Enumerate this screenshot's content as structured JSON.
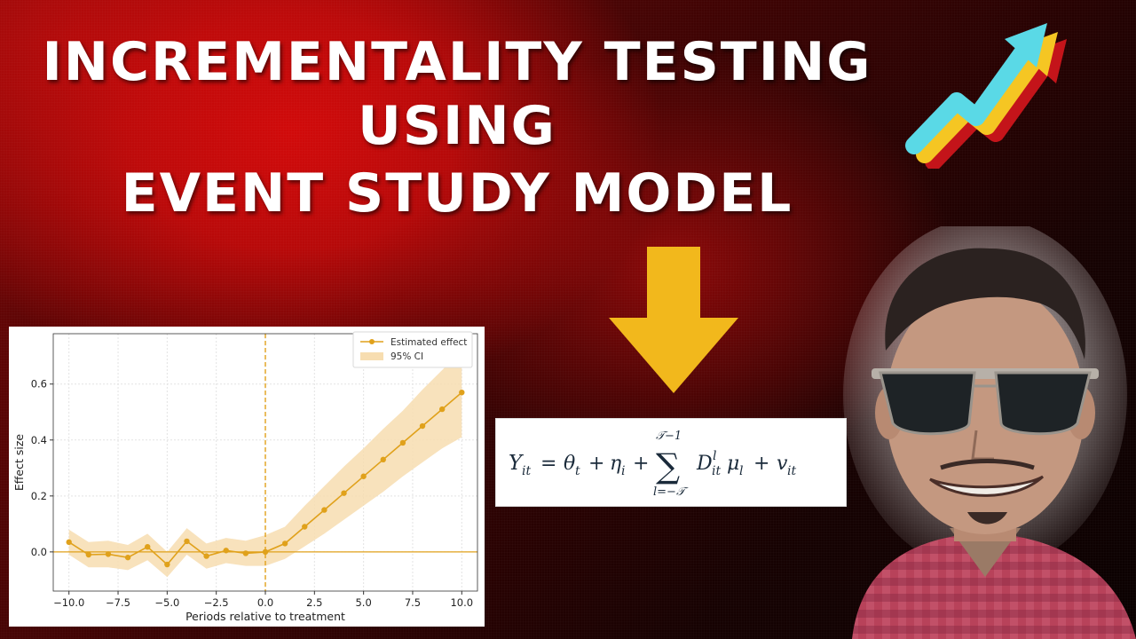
{
  "title": {
    "line1": "INCREMENTALITY TESTING",
    "line2": "USING",
    "line3": "EVENT STUDY MODEL"
  },
  "colors": {
    "background": "#8b0808",
    "chart_accent": "#e0a11b",
    "ci_fill": "#f7ddb0",
    "arrow_yellow": "#f2b81c",
    "trend_cyan": "#5ad9e6",
    "trend_yellow": "#f5c623",
    "trend_red": "#c4141a"
  },
  "icons": {
    "trend": "trend-up-arrow-icon",
    "down": "down-arrow-icon"
  },
  "equation": {
    "lhs": "Y",
    "lhs_sub": "it",
    "theta": "θ",
    "theta_sub": "t",
    "eta": "η",
    "eta_sub": "i",
    "sum_top": "𝒯−1",
    "sum_bottom": "l=−𝒯",
    "D": "D",
    "D_sup": "l",
    "D_sub": "it",
    "mu": "μ",
    "mu_sub": "l",
    "v": "v",
    "v_sub": "it",
    "equals": "=",
    "plus": "+",
    "sigma": "∑"
  },
  "chart_data": {
    "type": "line",
    "xlabel": "Periods relative to treatment",
    "ylabel": "Effect size",
    "xlim": [
      -10.8,
      10.8
    ],
    "ylim": [
      -0.14,
      0.78
    ],
    "xticks": [
      -10.0,
      -7.5,
      -5.0,
      -2.5,
      0.0,
      2.5,
      5.0,
      7.5,
      10.0
    ],
    "xtick_labels": [
      "−10.0",
      "−7.5",
      "−5.0",
      "−2.5",
      "0.0",
      "2.5",
      "5.0",
      "7.5",
      "10.0"
    ],
    "yticks": [
      0.0,
      0.2,
      0.4,
      0.6
    ],
    "ytick_labels": [
      "0.0",
      "0.2",
      "0.4",
      "0.6"
    ],
    "grid": true,
    "legend_position": "top-right",
    "reference_vline": 0,
    "reference_hline": 0,
    "series": [
      {
        "name": "Estimated effect",
        "x": [
          -10,
          -9,
          -8,
          -7,
          -6,
          -5,
          -4,
          -3,
          -2,
          -1,
          0,
          1,
          2,
          3,
          4,
          5,
          6,
          7,
          8,
          9,
          10
        ],
        "values": [
          0.035,
          -0.01,
          -0.008,
          -0.02,
          0.018,
          -0.045,
          0.038,
          -0.015,
          0.005,
          -0.005,
          0.0,
          0.03,
          0.09,
          0.15,
          0.21,
          0.27,
          0.33,
          0.39,
          0.45,
          0.51,
          0.57
        ]
      },
      {
        "name": "95% CI",
        "x": [
          -10,
          -9,
          -8,
          -7,
          -6,
          -5,
          -4,
          -3,
          -2,
          -1,
          0,
          1,
          2,
          3,
          4,
          5,
          6,
          7,
          8,
          9,
          10
        ],
        "lower": [
          -0.01,
          -0.055,
          -0.055,
          -0.065,
          -0.03,
          -0.09,
          -0.01,
          -0.06,
          -0.04,
          -0.05,
          -0.05,
          -0.025,
          0.02,
          0.065,
          0.115,
          0.165,
          0.215,
          0.27,
          0.32,
          0.37,
          0.41
        ],
        "upper": [
          0.08,
          0.035,
          0.04,
          0.025,
          0.065,
          0.0,
          0.085,
          0.03,
          0.05,
          0.04,
          0.06,
          0.09,
          0.165,
          0.235,
          0.305,
          0.37,
          0.44,
          0.505,
          0.58,
          0.65,
          0.72
        ]
      }
    ]
  }
}
